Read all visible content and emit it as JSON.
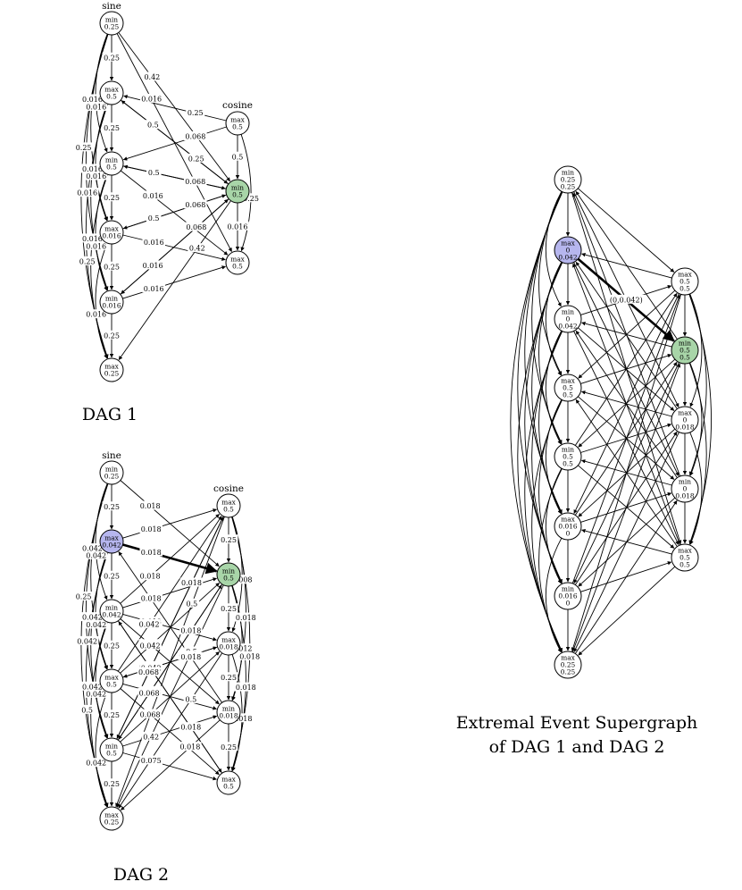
{
  "colors": {
    "node_default": "#ffffff",
    "node_blue": "#b6b6ee",
    "node_green": "#a8d5a8"
  },
  "dag1": {
    "caption": "DAG 1",
    "sine_label": "sine",
    "cosine_label": "cosine",
    "sine_nodes": [
      [
        "min",
        "0.25"
      ],
      [
        "max",
        "0.5"
      ],
      [
        "min",
        "0.5"
      ],
      [
        "max",
        "0.016"
      ],
      [
        "min",
        "0.016"
      ],
      [
        "max",
        "0.25"
      ]
    ],
    "cosine_nodes": [
      [
        "max",
        "0.5"
      ],
      [
        "min",
        "0.5"
      ],
      [
        "max",
        "0.5"
      ]
    ],
    "edge_labels": [
      "0.25",
      "0.25",
      "0.25",
      "0.25",
      "0.25",
      "0.5",
      "0.016",
      "0.016",
      "0.016",
      "0.016",
      "0.016",
      "0.016",
      "0.016",
      "0.016",
      "0.016",
      "0.25",
      "0.25",
      "0.25",
      "0.25",
      "0.25",
      "0.068",
      "0.068",
      "0.068",
      "0.068",
      "0.42",
      "0.42",
      "0.5",
      "0.5",
      "0.5",
      "0.016",
      "0.016",
      "0.016",
      "0.016",
      "0.016",
      "0.016",
      "0.25",
      "0.25"
    ]
  },
  "dag2": {
    "caption": "DAG 2",
    "sine_label": "sine",
    "cosine_label": "cosine",
    "sine_nodes": [
      [
        "min",
        "0.25"
      ],
      [
        "max",
        "0.042"
      ],
      [
        "min",
        "0.042"
      ],
      [
        "max",
        "0.5"
      ],
      [
        "min",
        "0.5"
      ],
      [
        "max",
        "0.25"
      ]
    ],
    "cosine_nodes": [
      [
        "max",
        "0.5"
      ],
      [
        "min",
        "0.5"
      ],
      [
        "max",
        "0.018"
      ],
      [
        "min",
        "0.018"
      ],
      [
        "max",
        "0.5"
      ]
    ],
    "edge_labels": [
      "0.25",
      "0.25",
      "0.25",
      "0.25",
      "0.25",
      "0.25",
      "0.25",
      "0.25",
      "0.25",
      "0.042",
      "0.042",
      "0.042",
      "0.042",
      "0.042",
      "0.042",
      "0.042",
      "0.042",
      "0.5",
      "0.25",
      "0.008",
      "0.012",
      "0.018",
      "0.018",
      "0.018",
      "0.018",
      "0.018",
      "0.018",
      "0.018",
      "0.018",
      "0.018",
      "0.018",
      "0.018",
      "0.018",
      "0.042",
      "0.042",
      "0.042",
      "0.042",
      "0.042",
      "0.068",
      "0.068",
      "0.068",
      "0.42",
      "0.075",
      "0.5",
      "0.5",
      "0.5",
      "0.018",
      "0.018",
      "0.018",
      "0.018",
      "0.018",
      "0.018",
      "0.018",
      "0.25",
      "0.25",
      "0.5"
    ]
  },
  "supergraph": {
    "caption_line1": "Extremal Event Supergraph",
    "caption_line2": "of DAG 1 and DAG 2",
    "bold_edge_label": "(0,0.042)",
    "left_nodes": [
      [
        "min",
        "0.25",
        "0.25"
      ],
      [
        "max",
        "0",
        "0.042"
      ],
      [
        "min",
        "0",
        "0.042"
      ],
      [
        "max",
        "0.5",
        "0.5"
      ],
      [
        "min",
        "0.5",
        "0.5"
      ],
      [
        "max",
        "0.016",
        "0"
      ],
      [
        "min",
        "0.016",
        "0"
      ],
      [
        "max",
        "0.25",
        "0.25"
      ]
    ],
    "right_nodes": [
      [
        "max",
        "0.5",
        "0.5"
      ],
      [
        "min",
        "0.5",
        "0.5"
      ],
      [
        "max",
        "0",
        "0.018"
      ],
      [
        "min",
        "0",
        "0.018"
      ],
      [
        "max",
        "0.5",
        "0.5"
      ]
    ]
  }
}
